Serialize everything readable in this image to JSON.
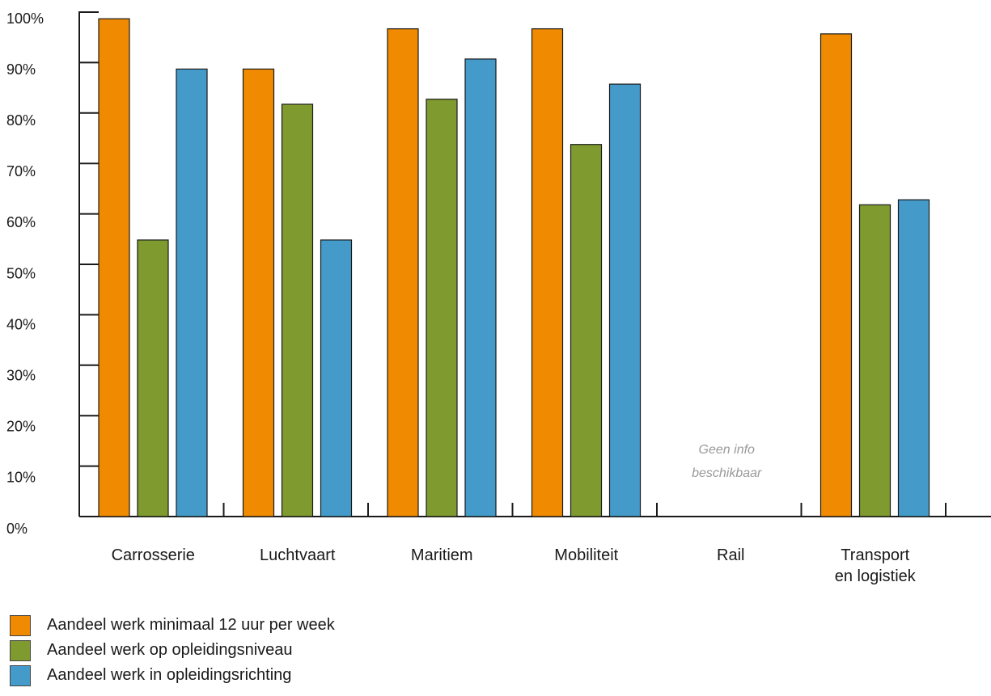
{
  "chart_data": {
    "type": "bar",
    "categories": [
      "Carrosserie",
      "Luchtvaart",
      "Maritiem",
      "Mobiliteit",
      "Rail",
      "Transport\nen logistiek"
    ],
    "series": [
      {
        "name": "Aandeel werk minimaal 12 uur per week",
        "color": "#f08a00",
        "values": [
          99,
          89,
          97,
          97,
          null,
          96
        ]
      },
      {
        "name": "Aandeel werk op opleidingsniveau",
        "color": "#7f9a2e",
        "values": [
          55,
          82,
          83,
          74,
          null,
          62
        ]
      },
      {
        "name": "Aandeel werk in opleidingsrichting",
        "color": "#449bc9",
        "values": [
          89,
          55,
          91,
          86,
          null,
          63
        ]
      }
    ],
    "y_ticks": [
      "0%",
      "10%",
      "20%",
      "30%",
      "40%",
      "50%",
      "60%",
      "70%",
      "80%",
      "90%",
      "100%"
    ],
    "ylim": [
      0,
      100
    ],
    "annotations": [
      {
        "category": "Rail",
        "text": [
          "Geen info",
          "beschikbaar"
        ]
      }
    ],
    "legend_position": "bottom-left",
    "grid": false
  }
}
